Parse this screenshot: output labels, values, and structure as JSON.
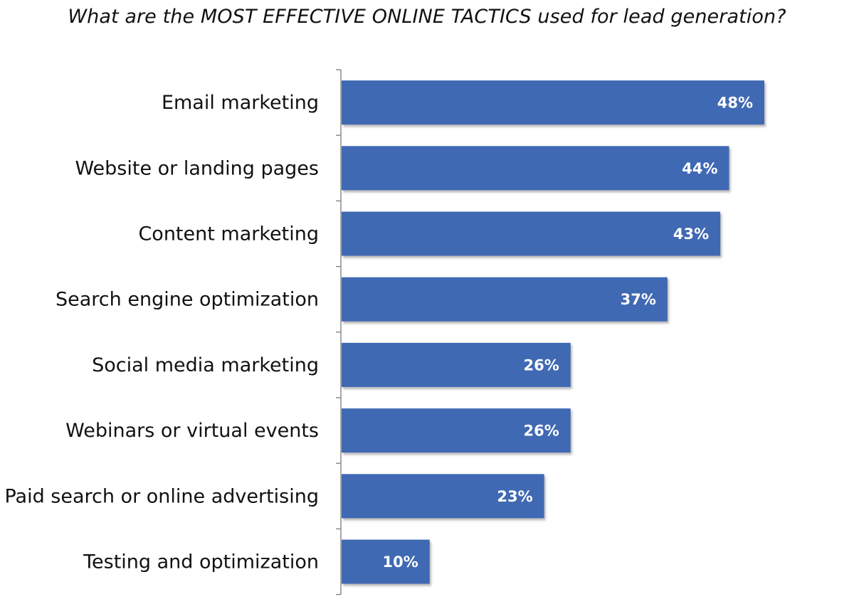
{
  "chart_data": {
    "type": "bar",
    "orientation": "horizontal",
    "title": "What are the MOST EFFECTIVE ONLINE TACTICS used for lead generation?",
    "categories": [
      "Email marketing",
      "Website or landing pages",
      "Content marketing",
      "Search engine optimization",
      "Social media marketing",
      "Webinars or virtual events",
      "Paid search or online advertising",
      "Testing and optimization"
    ],
    "values": [
      48,
      44,
      43,
      37,
      26,
      26,
      23,
      10
    ],
    "data_labels": [
      "48%",
      "44%",
      "43%",
      "37%",
      "26%",
      "26%",
      "23%",
      "10%"
    ],
    "unit": "%",
    "xlim": [
      0,
      50
    ],
    "grid": false,
    "legend": "none",
    "colors": {
      "bar": "#4169B3",
      "bar_shadow": "#b0b0b0",
      "axis": "#8c8c8c"
    }
  }
}
